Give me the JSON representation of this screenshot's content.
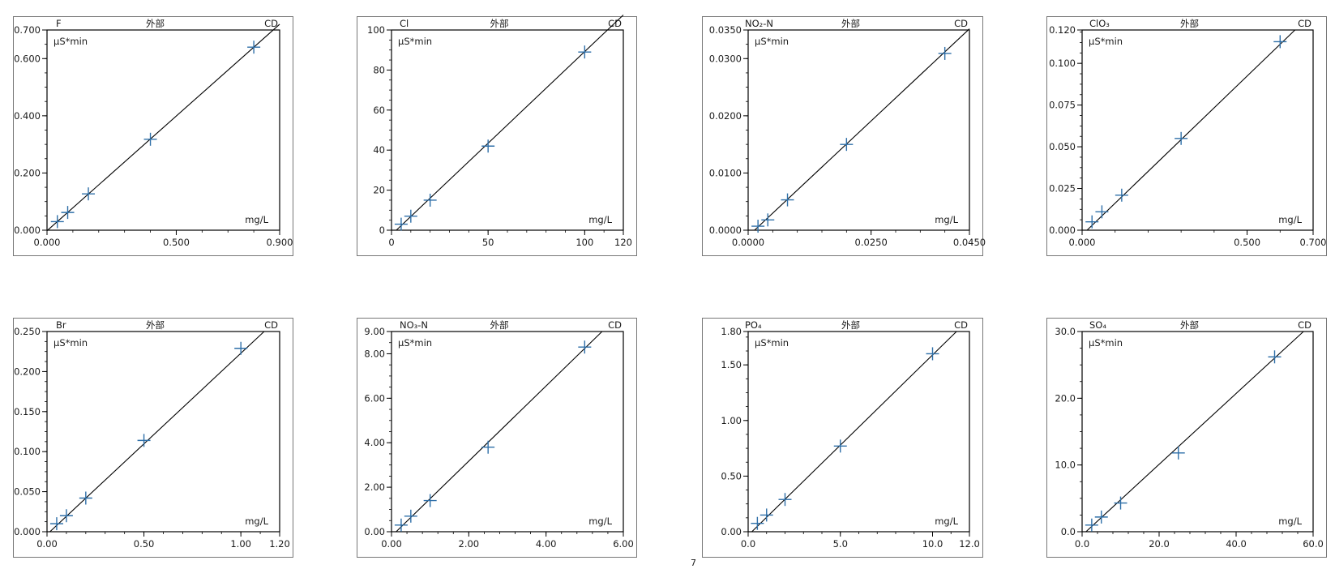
{
  "colors": {
    "marker": "#2e6fa8",
    "line": "#000000",
    "frame": "#777777",
    "axis": "#000000"
  },
  "chart_data": [
    {
      "type": "scatter",
      "subtitle": "F",
      "mode": "外部",
      "detector": "CD",
      "ylabel": "µS*min",
      "xlabel": "mg/L",
      "xlim": [
        0,
        0.9
      ],
      "ylim": [
        0,
        0.7
      ],
      "xticks": [
        0,
        0.5,
        0.9
      ],
      "xtick_labels": [
        "0.000",
        "0.500",
        "0.900"
      ],
      "yticks": [
        0,
        0.2,
        0.4,
        0.6,
        0.7
      ],
      "ytick_labels": [
        "0.000",
        "0.200",
        "0.400",
        "0.600",
        "0.700"
      ],
      "x": [
        0.04,
        0.08,
        0.16,
        0.4,
        0.8
      ],
      "y": [
        0.03,
        0.062,
        0.127,
        0.318,
        0.64
      ],
      "fit": [
        [
          0.0,
          -0.002
        ],
        [
          0.9,
          0.72
        ]
      ]
    },
    {
      "type": "scatter",
      "subtitle": "Cl",
      "mode": "外部",
      "detector": "CD",
      "ylabel": "µS*min",
      "xlabel": "mg/L",
      "xlim": [
        0,
        120
      ],
      "ylim": [
        0,
        100
      ],
      "xticks": [
        0,
        50,
        100,
        120
      ],
      "xtick_labels": [
        "0",
        "50",
        "100",
        "120"
      ],
      "yticks": [
        0,
        20,
        40,
        60,
        80,
        100
      ],
      "ytick_labels": [
        "0",
        "20",
        "40",
        "60",
        "80",
        "100"
      ],
      "x": [
        5,
        10,
        20,
        50,
        100
      ],
      "y": [
        3,
        7,
        15,
        42,
        89
      ],
      "fit": [
        [
          2.5,
          0
        ],
        [
          120,
          107.5
        ]
      ]
    },
    {
      "type": "scatter",
      "subtitle": "NO₂-N",
      "mode": "外部",
      "detector": "CD",
      "ylabel": "µS*min",
      "xlabel": "mg/L",
      "xlim": [
        0,
        0.045
      ],
      "ylim": [
        0,
        0.035
      ],
      "xticks": [
        0,
        0.025,
        0.045
      ],
      "xtick_labels": [
        "0.0000",
        "0.0250",
        "0.0450"
      ],
      "yticks": [
        0,
        0.01,
        0.02,
        0.03,
        0.035
      ],
      "ytick_labels": [
        "0.0000",
        "0.0100",
        "0.0200",
        "0.0300",
        "0.0350"
      ],
      "x": [
        0.002,
        0.004,
        0.008,
        0.02,
        0.04
      ],
      "y": [
        0.0007,
        0.0018,
        0.0053,
        0.015,
        0.0309
      ],
      "fit": [
        [
          0.0013,
          0
        ],
        [
          0.045,
          0.0352
        ]
      ]
    },
    {
      "type": "scatter",
      "subtitle": "ClO₃",
      "mode": "外部",
      "detector": "CD",
      "ylabel": "µS*min",
      "xlabel": "mg/L",
      "xlim": [
        0,
        0.7
      ],
      "ylim": [
        0,
        0.12
      ],
      "xticks": [
        0,
        0.5,
        0.7
      ],
      "xtick_labels": [
        "0.000",
        "0.500",
        "0.700"
      ],
      "yticks": [
        0,
        0.025,
        0.05,
        0.075,
        0.1,
        0.12
      ],
      "ytick_labels": [
        "0.000",
        "0.025",
        "0.050",
        "0.075",
        "0.100",
        "0.120"
      ],
      "x": [
        0.03,
        0.06,
        0.12,
        0.3,
        0.6
      ],
      "y": [
        0.005,
        0.011,
        0.021,
        0.055,
        0.113
      ],
      "fit": [
        [
          0.015,
          0
        ],
        [
          0.645,
          0.12
        ]
      ]
    },
    {
      "type": "scatter",
      "subtitle": "Br",
      "mode": "外部",
      "detector": "CD",
      "ylabel": "µS*min",
      "xlabel": "mg/L",
      "xlim": [
        0,
        1.2
      ],
      "ylim": [
        0,
        0.25
      ],
      "xticks": [
        0,
        0.5,
        1.0,
        1.2
      ],
      "xtick_labels": [
        "0.00",
        "0.50",
        "1.00",
        "1.20"
      ],
      "yticks": [
        0,
        0.05,
        0.1,
        0.15,
        0.2,
        0.25
      ],
      "ytick_labels": [
        "0.000",
        "0.050",
        "0.100",
        "0.150",
        "0.200",
        "0.250"
      ],
      "x": [
        0.05,
        0.1,
        0.2,
        0.5,
        1.0
      ],
      "y": [
        0.01,
        0.02,
        0.042,
        0.114,
        0.229
      ],
      "fit": [
        [
          0.015,
          0
        ],
        [
          1.12,
          0.25
        ]
      ]
    },
    {
      "type": "scatter",
      "subtitle": "NO₃-N",
      "mode": "外部",
      "detector": "CD",
      "ylabel": "µS*min",
      "xlabel": "mg/L",
      "xlim": [
        0,
        6
      ],
      "ylim": [
        0,
        9
      ],
      "xticks": [
        0,
        2,
        4,
        6
      ],
      "xtick_labels": [
        "0.00",
        "2.00",
        "4.00",
        "6.00"
      ],
      "yticks": [
        0,
        2,
        4,
        6,
        8,
        9
      ],
      "ytick_labels": [
        "0.00",
        "2.00",
        "4.00",
        "6.00",
        "8.00",
        "9.00"
      ],
      "x": [
        0.25,
        0.5,
        1.0,
        2.5,
        5.0
      ],
      "y": [
        0.3,
        0.7,
        1.4,
        3.8,
        8.3
      ],
      "fit": [
        [
          0.12,
          0
        ],
        [
          5.45,
          9.0
        ]
      ]
    },
    {
      "type": "scatter",
      "subtitle": "PO₄",
      "mode": "外部",
      "detector": "CD",
      "ylabel": "µS*min",
      "xlabel": "mg/L",
      "xlim": [
        0,
        12
      ],
      "ylim": [
        0,
        1.8
      ],
      "xticks": [
        0,
        5,
        10,
        12
      ],
      "xtick_labels": [
        "0.0",
        "5.0",
        "10.0",
        "12.0"
      ],
      "yticks": [
        0,
        0.5,
        1.0,
        1.5,
        1.8
      ],
      "ytick_labels": [
        "0.00",
        "0.50",
        "1.00",
        "1.50",
        "1.80"
      ],
      "x": [
        0.5,
        1.0,
        2.0,
        5.0,
        10.0
      ],
      "y": [
        0.075,
        0.15,
        0.29,
        0.77,
        1.6
      ],
      "fit": [
        [
          0.2,
          0
        ],
        [
          11.3,
          1.8
        ]
      ]
    },
    {
      "type": "scatter",
      "subtitle": "SO₄",
      "mode": "外部",
      "detector": "CD",
      "ylabel": "µS*min",
      "xlabel": "mg/L",
      "xlim": [
        0,
        60
      ],
      "ylim": [
        0,
        30
      ],
      "xticks": [
        0,
        20,
        40,
        60
      ],
      "xtick_labels": [
        "0.0",
        "20.0",
        "40.0",
        "60.0"
      ],
      "yticks": [
        0,
        10,
        20,
        30
      ],
      "ytick_labels": [
        "0.0",
        "10.0",
        "20.0",
        "30.0"
      ],
      "x": [
        2.5,
        5,
        10,
        25,
        50
      ],
      "y": [
        1,
        2.2,
        4.3,
        11.8,
        26.2
      ],
      "fit": [
        [
          1.0,
          0
        ],
        [
          57.5,
          30
        ]
      ]
    }
  ],
  "stray_mark": "7"
}
